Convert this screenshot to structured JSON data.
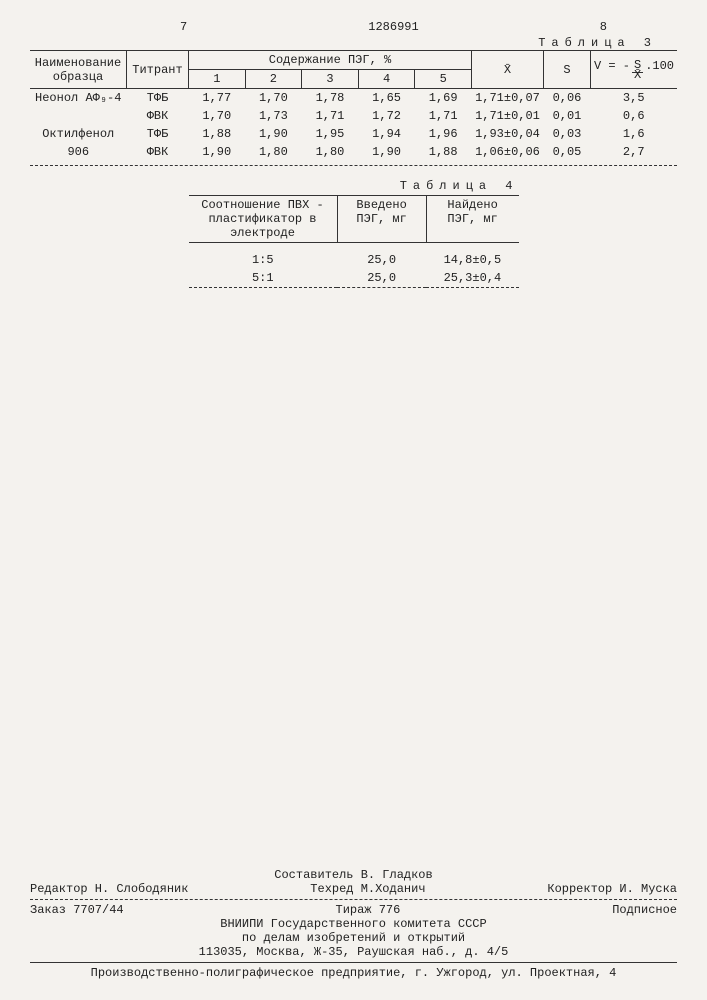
{
  "page_left": "7",
  "doc_number": "1286991",
  "page_right": "8",
  "table3": {
    "caption": "Таблица 3",
    "headers": {
      "name": "Наименование образца",
      "titrant": "Титрант",
      "content": "Содержание ПЭГ, %",
      "cols": [
        "1",
        "2",
        "3",
        "4",
        "5"
      ],
      "xbar": "X̄",
      "s": "S",
      "v_formula_prefix": "V = -",
      "v_formula_num": "S",
      "v_formula_den": "X̄",
      "v_formula_suffix": ".100"
    },
    "rows": [
      {
        "name": "Неонол АФ₉-4",
        "titrant": "ТФБ",
        "v": [
          "1,77",
          "1,70",
          "1,78",
          "1,65",
          "1,69"
        ],
        "xbar": "1,71±0,07",
        "s": "0,06",
        "vv": "3,5"
      },
      {
        "name": "",
        "titrant": "ФВК",
        "v": [
          "1,70",
          "1,73",
          "1,71",
          "1,72",
          "1,71"
        ],
        "xbar": "1,71±0,01",
        "s": "0,01",
        "vv": "0,6"
      },
      {
        "name": "Октилфенол",
        "titrant": "ТФБ",
        "v": [
          "1,88",
          "1,90",
          "1,95",
          "1,94",
          "1,96"
        ],
        "xbar": "1,93±0,04",
        "s": "0,03",
        "vv": "1,6"
      },
      {
        "name": "906",
        "titrant": "ФВК",
        "v": [
          "1,90",
          "1,80",
          "1,80",
          "1,90",
          "1,88"
        ],
        "xbar": "1,06±0,06",
        "s": "0,05",
        "vv": "2,7"
      }
    ]
  },
  "table4": {
    "caption": "Таблица 4",
    "headers": {
      "ratio": "Соотношение ПВХ - пластификатор в электроде",
      "intro": "Введено ПЭГ, мг",
      "found": "Найдено ПЭГ, мг"
    },
    "rows": [
      {
        "ratio": "1:5",
        "intro": "25,0",
        "found": "14,8±0,5"
      },
      {
        "ratio": "5:1",
        "intro": "25,0",
        "found": "25,3±0,4"
      }
    ]
  },
  "footer": {
    "compiler": "Составитель В. Гладков",
    "editor": "Редактор Н. Слободяник",
    "techred": "Техред М.Ходанич",
    "corrector": "Корректор И. Муска",
    "order": "Заказ 7707/44",
    "tirazh": "Тираж 776",
    "signed": "Подписное",
    "org1": "ВНИИПИ Государственного комитета СССР",
    "org2": "по делам изобретений и открытий",
    "addr": "113035, Москва, Ж-35, Раушская наб., д. 4/5",
    "print": "Производственно-полиграфическое предприятие, г. Ужгород, ул. Проектная, 4"
  }
}
